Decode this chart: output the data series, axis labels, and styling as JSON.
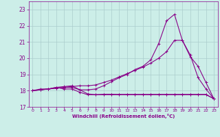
{
  "xlabel": "Windchill (Refroidissement éolien,°C)",
  "ylabel": "",
  "bg_color": "#cceee8",
  "grid_color": "#aacccc",
  "line_color": "#880088",
  "xlim": [
    -0.5,
    23.5
  ],
  "ylim": [
    17,
    23.5
  ],
  "yticks": [
    17,
    18,
    19,
    20,
    21,
    22,
    23
  ],
  "xticks": [
    0,
    1,
    2,
    3,
    4,
    5,
    6,
    7,
    8,
    9,
    10,
    11,
    12,
    13,
    14,
    15,
    16,
    17,
    18,
    19,
    20,
    21,
    22,
    23
  ],
  "line1_x": [
    0,
    1,
    2,
    3,
    4,
    5,
    6,
    7,
    8,
    9,
    10,
    11,
    12,
    13,
    14,
    15,
    16,
    17,
    18,
    19,
    20,
    21,
    22,
    23
  ],
  "line1_y": [
    18.0,
    18.1,
    18.1,
    18.2,
    18.1,
    18.1,
    17.9,
    17.75,
    17.75,
    17.75,
    17.75,
    17.75,
    17.75,
    17.75,
    17.75,
    17.75,
    17.75,
    17.75,
    17.75,
    17.75,
    17.75,
    17.75,
    17.75,
    17.5
  ],
  "line2_x": [
    0,
    1,
    2,
    3,
    4,
    5,
    6,
    7,
    8,
    9,
    10,
    11,
    12,
    13,
    14,
    15,
    16,
    17,
    18,
    19,
    20,
    21,
    22,
    23
  ],
  "line2_y": [
    18.0,
    18.05,
    18.1,
    18.15,
    18.2,
    18.2,
    18.05,
    18.05,
    18.1,
    18.3,
    18.55,
    18.8,
    19.0,
    19.3,
    19.5,
    19.9,
    20.9,
    22.3,
    22.7,
    21.1,
    20.2,
    18.8,
    18.1,
    17.5
  ],
  "line3_x": [
    0,
    1,
    2,
    3,
    4,
    5,
    6,
    7,
    8,
    9,
    10,
    11,
    12,
    13,
    14,
    15,
    16,
    17,
    18,
    19,
    20,
    21,
    22,
    23
  ],
  "line3_y": [
    18.0,
    18.05,
    18.1,
    18.15,
    18.2,
    18.25,
    18.3,
    18.3,
    18.35,
    18.5,
    18.65,
    18.85,
    19.05,
    19.25,
    19.45,
    19.7,
    20.0,
    20.4,
    21.1,
    21.1,
    20.1,
    19.5,
    18.5,
    17.5
  ],
  "line4_x": [
    0,
    1,
    2,
    3,
    4,
    5,
    6,
    7,
    8,
    9,
    10,
    11,
    12,
    13,
    14,
    15,
    16,
    17,
    18,
    19,
    20,
    21,
    22,
    23
  ],
  "line4_y": [
    18.0,
    18.05,
    18.1,
    18.2,
    18.25,
    18.3,
    18.05,
    17.8,
    17.75,
    17.78,
    17.78,
    17.77,
    17.77,
    17.77,
    17.77,
    17.77,
    17.77,
    17.77,
    17.77,
    17.77,
    17.77,
    17.77,
    17.77,
    17.5
  ]
}
